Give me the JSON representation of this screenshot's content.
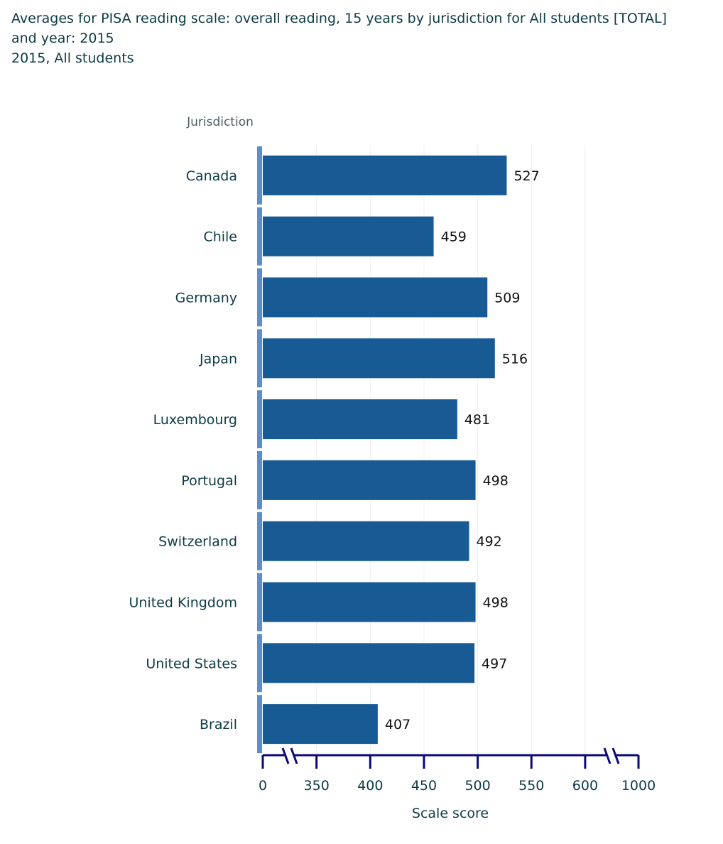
{
  "header": {
    "title_line1": "Averages for PISA reading scale: overall reading, 15 years by jurisdiction for All students [TOTAL]",
    "title_line2": "and year: 2015",
    "subtitle": "2015, All students"
  },
  "chart_data": {
    "type": "bar",
    "orientation": "horizontal",
    "title": "Averages for PISA reading scale: overall reading, 15 years by jurisdiction for All students [TOTAL] and year: 2015",
    "subtitle": "2015, All students",
    "ylabel": "Jurisdiction",
    "xlabel": "Scale score",
    "categories": [
      "Canada",
      "Chile",
      "Germany",
      "Japan",
      "Luxembourg",
      "Portugal",
      "Switzerland",
      "United Kingdom",
      "United States",
      "Brazil"
    ],
    "values": [
      527,
      459,
      509,
      516,
      481,
      498,
      492,
      498,
      497,
      407
    ],
    "x_ticks": [
      "0",
      "350",
      "400",
      "450",
      "500",
      "550",
      "600",
      "1000"
    ],
    "xlim": [
      300,
      650
    ],
    "axis_breaks": [
      "between 0 and 350",
      "between 600 and 1000"
    ],
    "grid": true,
    "legend": "none",
    "colors": {
      "bar": "#175a94",
      "baseline": "#5b8ecb",
      "axis": "#0a0a7a",
      "grid": "#eeeeee",
      "text": "#0d3b45"
    }
  }
}
